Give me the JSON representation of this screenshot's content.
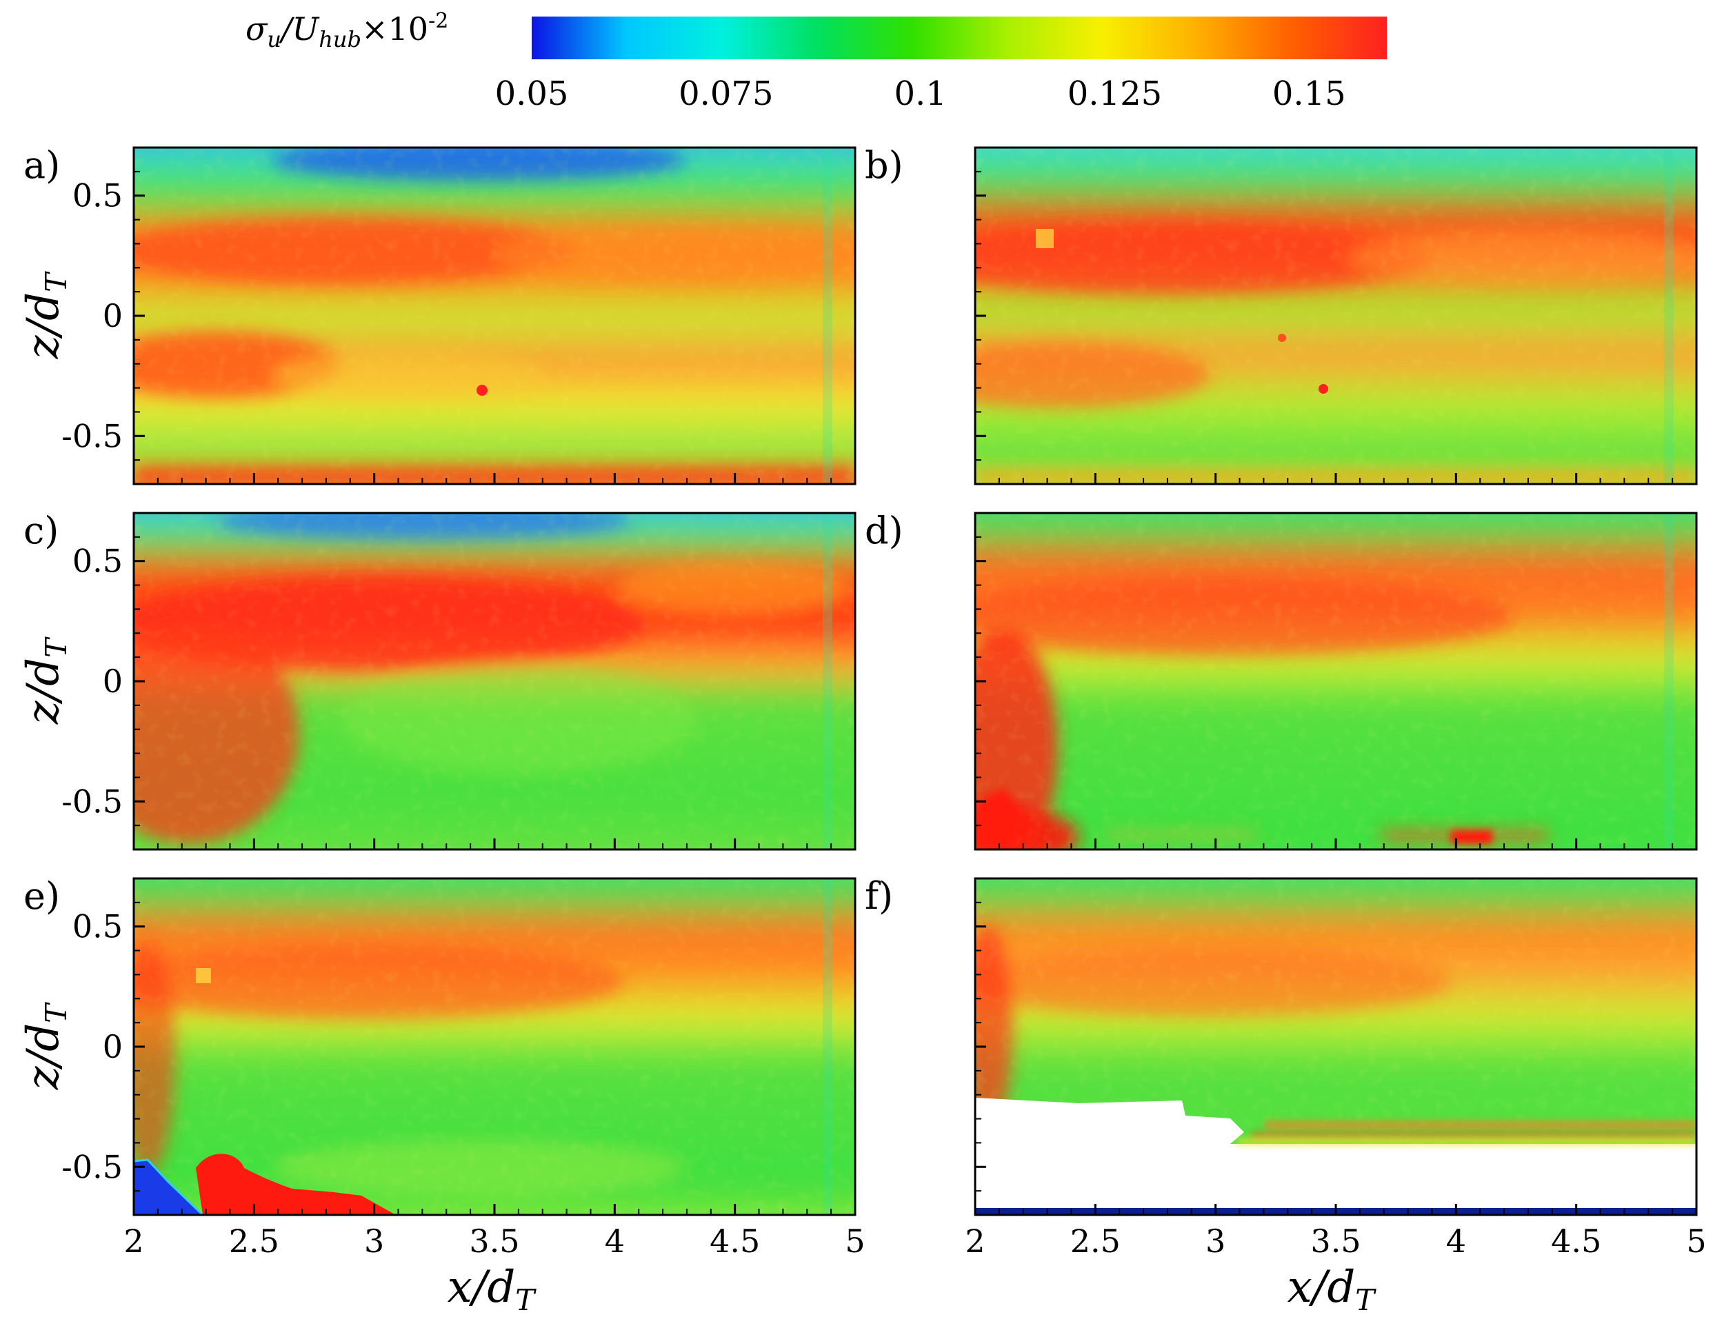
{
  "figure": {
    "colorbar": {
      "label_main": "σ",
      "label_sub1": "u",
      "label_mid": "/U",
      "label_sub2": "hub",
      "label_times": "×10",
      "label_exp": "-2",
      "stops": [
        "#0a14e6",
        "#00c8ff",
        "#00f0e0",
        "#00e060",
        "#30e000",
        "#a8f000",
        "#f8f000",
        "#ffb000",
        "#ff6000",
        "#ff2020"
      ],
      "ticks": [
        "0.05",
        "0.075",
        "0.1",
        "0.125",
        "0.15"
      ],
      "tick_values": [
        0.05,
        0.075,
        0.1,
        0.125,
        0.15
      ],
      "range": [
        0.05,
        0.16
      ]
    },
    "palette": {
      "blue": "#2a6cf0",
      "cyan": "#30d8e0",
      "green": "#3ee040",
      "lightgreen": "#8ee840",
      "yellow": "#f0ec30",
      "orange": "#ff9a20",
      "red": "#ff3818",
      "white": "#ffffff",
      "navy": "#0a2090"
    }
  },
  "chart_data": {
    "type": "heatmap",
    "quantity": "σu/Uhub ×10^-2",
    "xlabel": "x/dT",
    "ylabel": "z/dT",
    "xlim": [
      2,
      5
    ],
    "ylim": [
      -0.7,
      0.7
    ],
    "x_ticks": [
      "2",
      "2.5",
      "3",
      "3.5",
      "4",
      "4.5",
      "5"
    ],
    "y_ticks": [
      "0.5",
      "0",
      "-0.5"
    ],
    "panels": [
      {
        "label": "a)",
        "top_band": "low (blue)",
        "upper_shear_layer": "high (orange-red)",
        "lower_shear_layer": "high (orange)",
        "core": "medium (yellow-green)",
        "bottom_edge": "high (red)"
      },
      {
        "label": "b)",
        "top_band": "low (cyan)",
        "upper_shear_layer": "high (red)",
        "lower_shear_layer": "high (orange)",
        "core": "medium (green)",
        "bottom_edge": "high (orange)"
      },
      {
        "label": "c)",
        "top_band": "low (blue)",
        "upper_shear_layer": "high (red)",
        "lower_left_region": "high (red)",
        "core": "medium (green)"
      },
      {
        "label": "d)",
        "top_band": "medium (green)",
        "upper_shear_layer": "high (orange-red)",
        "lower_left_corner": "high (red)",
        "core": "medium (green)",
        "bottom_streaks": "high (orange-red)"
      },
      {
        "label": "e)",
        "top_band": "medium (green)",
        "upper_shear_layer": "high (orange)",
        "lower_left_corner": "high (red) / low (blue)",
        "core": "medium (green)"
      },
      {
        "label": "f)",
        "top_band": "medium (green)",
        "upper_shear_layer": "high (orange)",
        "core": "medium (green)",
        "masked_region": "no data (white)",
        "bottom_streaks": "high (orange-red)"
      }
    ]
  }
}
